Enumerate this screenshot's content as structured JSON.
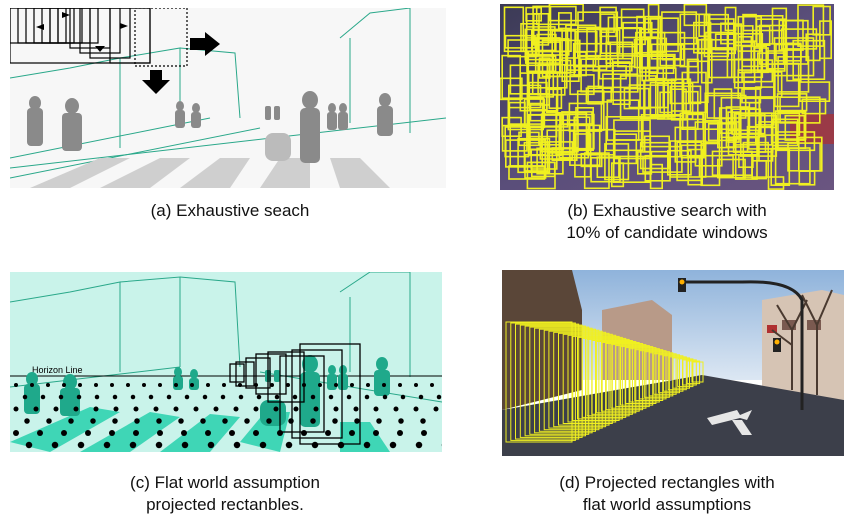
{
  "figure": {
    "panels": [
      {
        "id": "a",
        "caption_lines": [
          "(a) Exhaustive seach"
        ]
      },
      {
        "id": "b",
        "caption_lines": [
          "(b) Exhaustive search with",
          "10% of candidate windows"
        ]
      },
      {
        "id": "c",
        "caption_lines": [
          "(c) Flat world assumption",
          "projected rectanbles."
        ],
        "annotation": "Horizon Line"
      },
      {
        "id": "d",
        "caption_lines": [
          "(d) Projected rectangles with",
          "flat world assumptions"
        ]
      }
    ]
  },
  "colors": {
    "outline_green": "#2aa88a",
    "mint_fill": "#c9f3ea",
    "teal_people": "#1fa98b",
    "yellow_boxes": "#f0f020",
    "sky": "#bcd3ea",
    "road": "#3c3f4a"
  }
}
